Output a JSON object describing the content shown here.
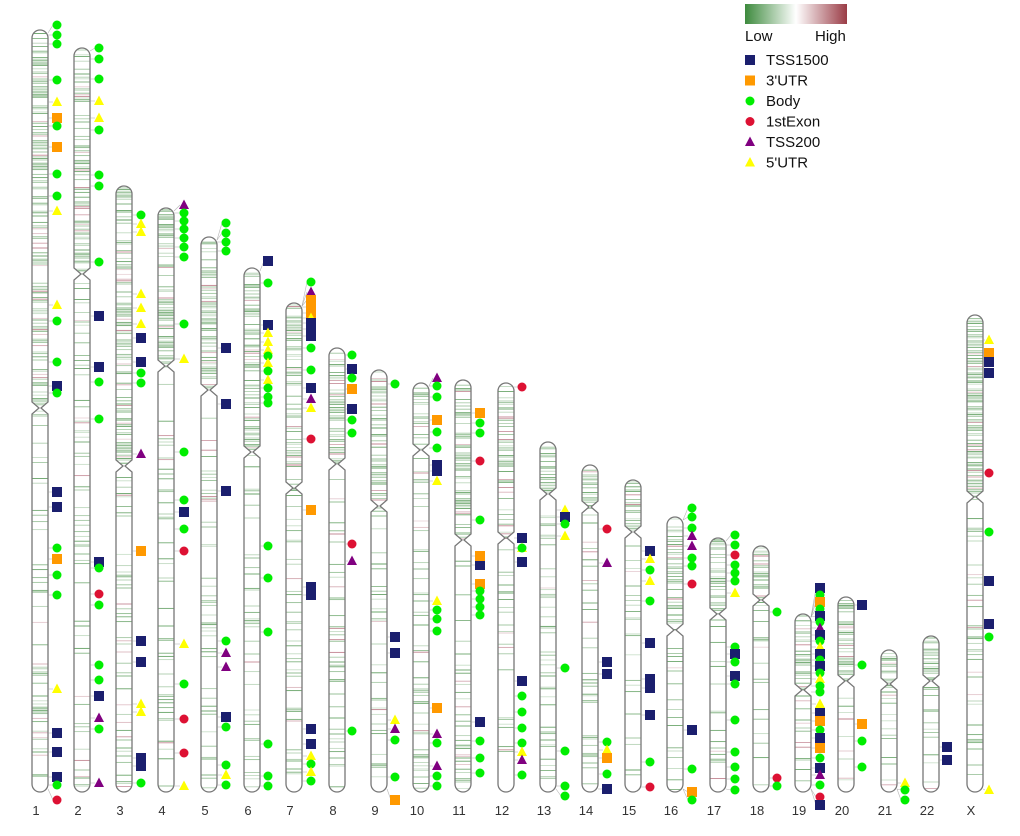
{
  "colorbar": {
    "low_label": "Low",
    "high_label": "High",
    "low_color": "#3d8a3d",
    "mid_color": "#ffffff",
    "high_color": "#9a3c46"
  },
  "legend": [
    {
      "label": "TSS1500",
      "shape": "square",
      "color": "#1b1f6e"
    },
    {
      "label": "3'UTR",
      "shape": "square",
      "color": "#ff9900"
    },
    {
      "label": "Body",
      "shape": "circle",
      "color": "#00ee00"
    },
    {
      "label": "1stExon",
      "shape": "circle",
      "color": "#dd1133"
    },
    {
      "label": "TSS200",
      "shape": "triangle",
      "color": "#800080"
    },
    {
      "label": "5'UTR",
      "shape": "triangle",
      "color": "#ffff00"
    }
  ],
  "chromosomes": [
    {
      "label": "1"
    },
    {
      "label": "2"
    },
    {
      "label": "3"
    },
    {
      "label": "4"
    },
    {
      "label": "5"
    },
    {
      "label": "6"
    },
    {
      "label": "7"
    },
    {
      "label": "8"
    },
    {
      "label": "9"
    },
    {
      "label": "10"
    },
    {
      "label": "11"
    },
    {
      "label": "12"
    },
    {
      "label": "13"
    },
    {
      "label": "14"
    },
    {
      "label": "15"
    },
    {
      "label": "16"
    },
    {
      "label": "17"
    },
    {
      "label": "18"
    },
    {
      "label": "19"
    },
    {
      "label": "20"
    },
    {
      "label": "21"
    },
    {
      "label": "22"
    },
    {
      "label": "X"
    }
  ]
}
